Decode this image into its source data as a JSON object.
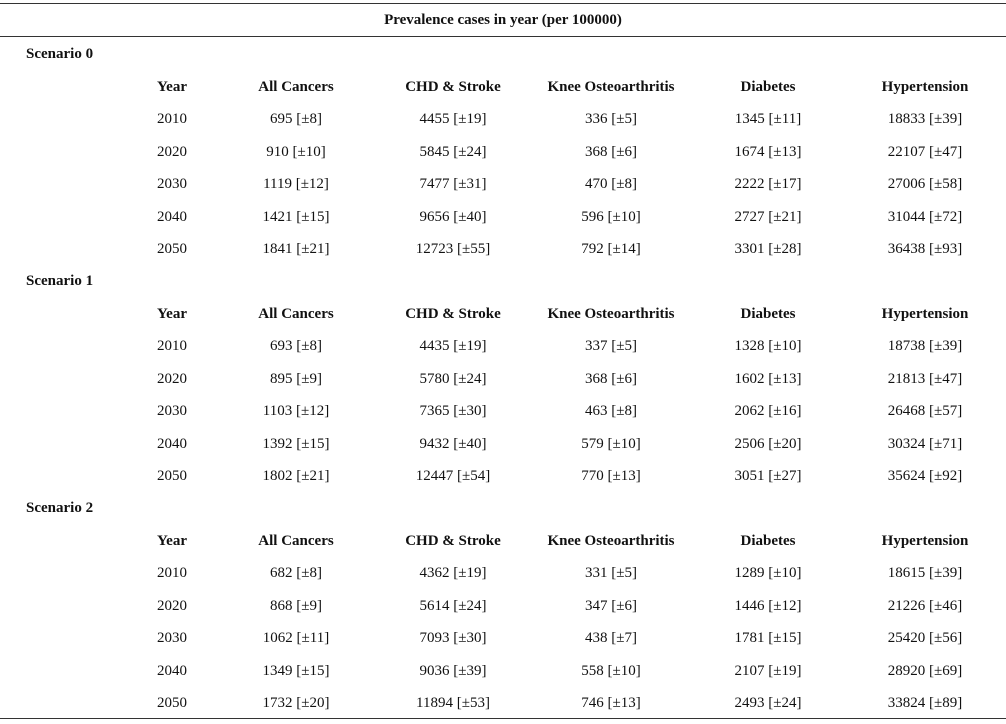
{
  "title": "Prevalence cases in year (per 100000)",
  "columns": [
    "Year",
    "All Cancers",
    "CHD & Stroke",
    "Knee Osteoarthritis",
    "Diabetes",
    "Hypertension"
  ],
  "scenarios": [
    {
      "name": "Scenario 0",
      "rows": [
        [
          "2010",
          "695 [±8]",
          "4455 [±19]",
          "336 [±5]",
          "1345 [±11]",
          "18833 [±39]"
        ],
        [
          "2020",
          "910 [±10]",
          "5845 [±24]",
          "368 [±6]",
          "1674 [±13]",
          "22107 [±47]"
        ],
        [
          "2030",
          "1119 [±12]",
          "7477 [±31]",
          "470 [±8]",
          "2222 [±17]",
          "27006 [±58]"
        ],
        [
          "2040",
          "1421 [±15]",
          "9656 [±40]",
          "596 [±10]",
          "2727 [±21]",
          "31044 [±72]"
        ],
        [
          "2050",
          "1841 [±21]",
          "12723 [±55]",
          "792 [±14]",
          "3301 [±28]",
          "36438 [±93]"
        ]
      ]
    },
    {
      "name": "Scenario 1",
      "rows": [
        [
          "2010",
          "693 [±8]",
          "4435 [±19]",
          "337 [±5]",
          "1328 [±10]",
          "18738 [±39]"
        ],
        [
          "2020",
          "895 [±9]",
          "5780 [±24]",
          "368 [±6]",
          "1602 [±13]",
          "21813 [±47]"
        ],
        [
          "2030",
          "1103 [±12]",
          "7365 [±30]",
          "463 [±8]",
          "2062 [±16]",
          "26468 [±57]"
        ],
        [
          "2040",
          "1392 [±15]",
          "9432 [±40]",
          "579 [±10]",
          "2506 [±20]",
          "30324 [±71]"
        ],
        [
          "2050",
          "1802 [±21]",
          "12447 [±54]",
          "770 [±13]",
          "3051 [±27]",
          "35624 [±92]"
        ]
      ]
    },
    {
      "name": "Scenario 2",
      "rows": [
        [
          "2010",
          "682 [±8]",
          "4362 [±19]",
          "331 [±5]",
          "1289 [±10]",
          "18615 [±39]"
        ],
        [
          "2020",
          "868 [±9]",
          "5614 [±24]",
          "347 [±6]",
          "1446 [±12]",
          "21226 [±46]"
        ],
        [
          "2030",
          "1062 [±11]",
          "7093 [±30]",
          "438 [±7]",
          "1781 [±15]",
          "25420 [±56]"
        ],
        [
          "2040",
          "1349 [±15]",
          "9036 [±39]",
          "558 [±10]",
          "2107 [±19]",
          "28920 [±69]"
        ],
        [
          "2050",
          "1732 [±20]",
          "11894 [±53]",
          "746 [±13]",
          "2493 [±24]",
          "33824 [±89]"
        ]
      ]
    }
  ]
}
